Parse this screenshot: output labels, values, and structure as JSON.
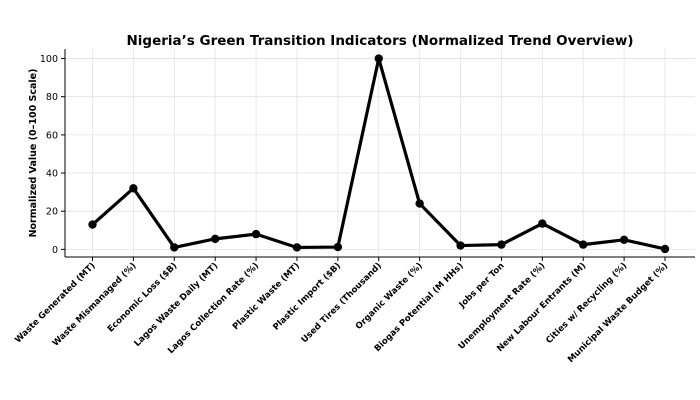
{
  "chart_data": {
    "type": "line",
    "title": "Nigeria’s Green Transition Indicators (Normalized Trend Overview)",
    "xlabel": "",
    "ylabel": "Normalized Value (0–100 Scale)",
    "ylim": [
      -4,
      105
    ],
    "yticks": [
      0,
      20,
      40,
      60,
      80,
      100
    ],
    "grid": true,
    "categories": [
      "Waste Generated (MT)",
      "Waste Mismanaged (%)",
      "Economic Loss ($B)",
      "Lagos Waste Daily (MT)",
      "Lagos Collection Rate (%)",
      "Plastic Waste (MT)",
      "Plastic Import ($B)",
      "Used Tires (Thousand)",
      "Organic Waste (%)",
      "Biogas Potential (M HHs)",
      "Jobs per Ton",
      "Unemployment Rate (%)",
      "New Labour Entrants (M)",
      "Cities w/ Recycling (%)",
      "Municipal Waste Budget (%)"
    ],
    "values": [
      13,
      32,
      1,
      5.5,
      8,
      1,
      1.2,
      100,
      24,
      2,
      2.5,
      13.5,
      2.5,
      5,
      0.2
    ],
    "colors": {
      "line": "#000000",
      "grid": "#e3e3e3"
    }
  }
}
